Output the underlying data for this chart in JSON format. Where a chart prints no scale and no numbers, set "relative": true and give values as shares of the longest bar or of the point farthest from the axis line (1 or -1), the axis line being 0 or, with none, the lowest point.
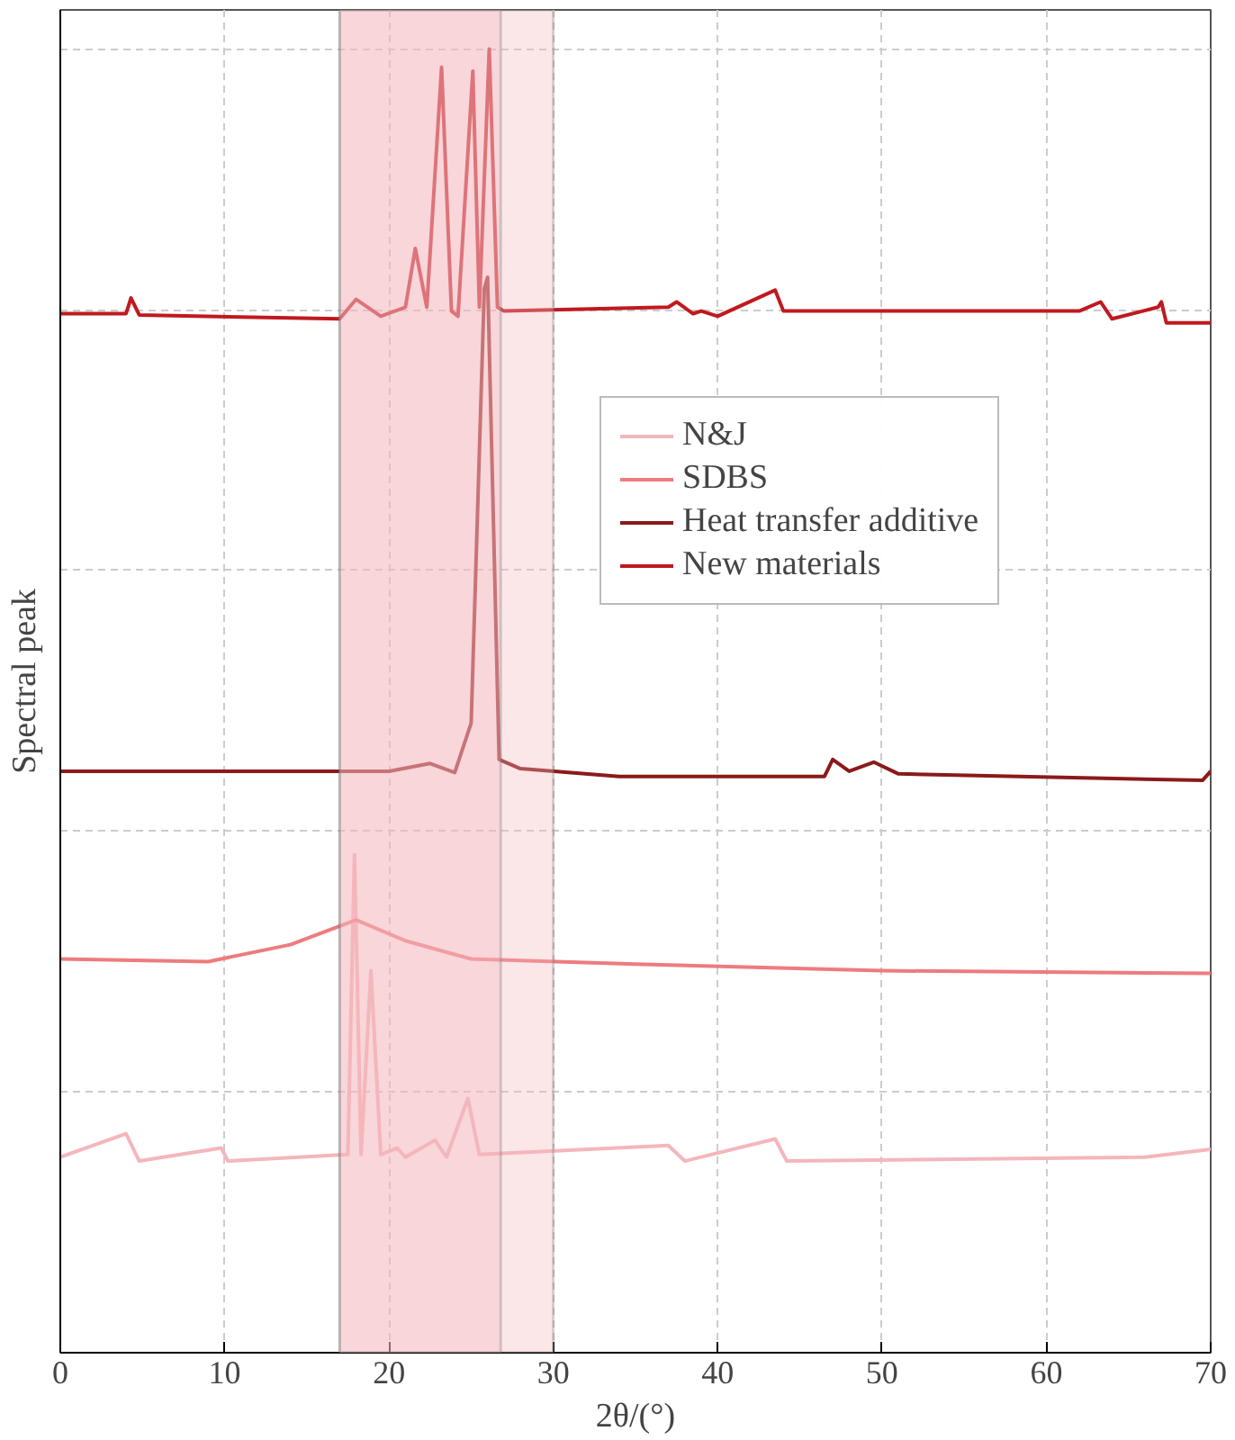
{
  "chart_data": {
    "type": "line",
    "relative": true,
    "xlabel": "2θ/(°)",
    "ylabel": "Spectral peak",
    "xlim": [
      0,
      70
    ],
    "xticks": [
      0,
      10,
      20,
      30,
      40,
      50,
      60,
      70
    ],
    "grid": true,
    "legend": "right",
    "line_style": "solid",
    "marker": "none",
    "series": [
      {
        "name": "N&J",
        "color": "#f4b6bc",
        "x": [
          0,
          4,
          4.8,
          9.8,
          10.2,
          17.5,
          17.9,
          18.3,
          18.9,
          19.5,
          20.5,
          21,
          22.8,
          23.5,
          24.8,
          25.5,
          37,
          38,
          43.5,
          44.2,
          66,
          70
        ],
        "values": [
          0.15,
          0.168,
          0.147,
          0.157,
          0.147,
          0.152,
          0.382,
          0.152,
          0.293,
          0.152,
          0.157,
          0.15,
          0.163,
          0.15,
          0.195,
          0.152,
          0.159,
          0.147,
          0.164,
          0.147,
          0.15,
          0.156
        ]
      },
      {
        "name": "SDBS",
        "color": "#ee7b7e",
        "x": [
          0,
          9,
          14,
          18,
          21,
          25,
          35,
          50,
          70
        ],
        "values": [
          0.302,
          0.3,
          0.313,
          0.332,
          0.316,
          0.302,
          0.298,
          0.293,
          0.291
        ]
      },
      {
        "name": "Heat transfer additive",
        "color": "#8b1a1a",
        "x": [
          0,
          20,
          22.5,
          24,
          25,
          25.8,
          26,
          26.7,
          28,
          34,
          46.5,
          47,
          48,
          49.5,
          51,
          69.5,
          70
        ],
        "values": [
          0.446,
          0.446,
          0.452,
          0.445,
          0.483,
          0.816,
          0.825,
          0.455,
          0.448,
          0.442,
          0.442,
          0.455,
          0.446,
          0.453,
          0.444,
          0.439,
          0.446
        ]
      },
      {
        "name": "New materials",
        "color": "#c0191f",
        "x": [
          0,
          4,
          4.3,
          4.8,
          17,
          18,
          19.5,
          21,
          21.6,
          22.3,
          23.2,
          23.8,
          24.2,
          25.1,
          25.5,
          26.1,
          26.6,
          27,
          37,
          37.5,
          38.5,
          39,
          40,
          43.5,
          44,
          62,
          63.3,
          64,
          66.8,
          67,
          67.3,
          70
        ],
        "values": [
          0.797,
          0.797,
          0.809,
          0.796,
          0.793,
          0.808,
          0.795,
          0.802,
          0.847,
          0.802,
          0.986,
          0.799,
          0.795,
          0.983,
          0.802,
          1.0,
          0.802,
          0.799,
          0.802,
          0.806,
          0.797,
          0.799,
          0.795,
          0.815,
          0.799,
          0.799,
          0.806,
          0.793,
          0.802,
          0.806,
          0.79,
          0.79
        ]
      }
    ],
    "bands": [
      {
        "axis": "x",
        "from": 17,
        "to": 30,
        "color": "#f4b6bc"
      },
      {
        "axis": "x",
        "from": 17,
        "to": 26.8,
        "color": "#f4b6bc"
      }
    ]
  }
}
